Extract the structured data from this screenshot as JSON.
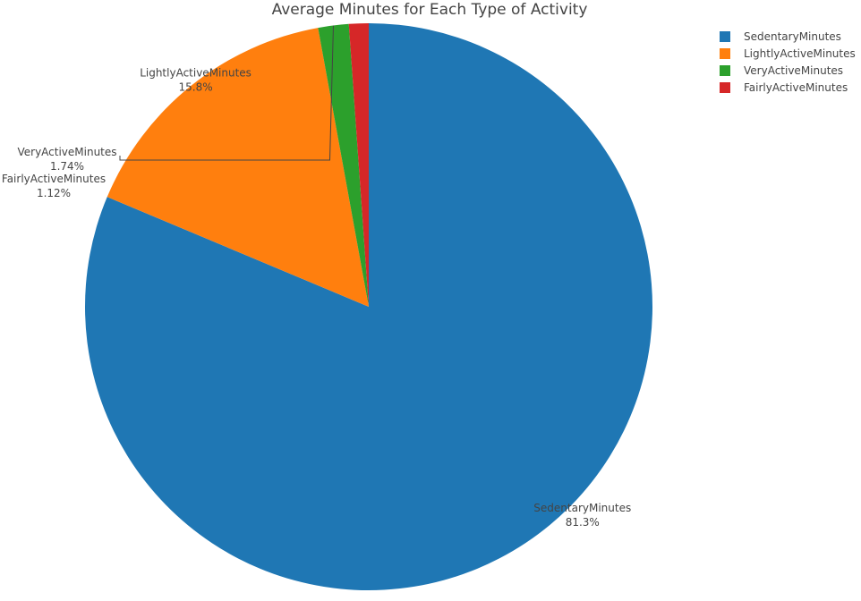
{
  "chart_data": {
    "type": "pie",
    "title": "Average Minutes for Each Type of Activity",
    "legend_position": "top-right",
    "slices": [
      {
        "label": "SedentaryMinutes",
        "percent": 81.3,
        "percent_text": "81.3%",
        "color": "#1f77b4"
      },
      {
        "label": "LightlyActiveMinutes",
        "percent": 15.8,
        "percent_text": "15.8%",
        "color": "#ff7f0e"
      },
      {
        "label": "VeryActiveMinutes",
        "percent": 1.74,
        "percent_text": "1.74%",
        "color": "#2ca02c"
      },
      {
        "label": "FairlyActiveMinutes",
        "percent": 1.12,
        "percent_text": "1.12%",
        "color": "#d62728"
      }
    ],
    "legend": [
      {
        "label": "SedentaryMinutes",
        "color": "#1f77b4"
      },
      {
        "label": "LightlyActiveMinutes",
        "color": "#ff7f0e"
      },
      {
        "label": "VeryActiveMinutes",
        "color": "#2ca02c"
      },
      {
        "label": "FairlyActiveMinutes",
        "color": "#d62728"
      }
    ]
  }
}
